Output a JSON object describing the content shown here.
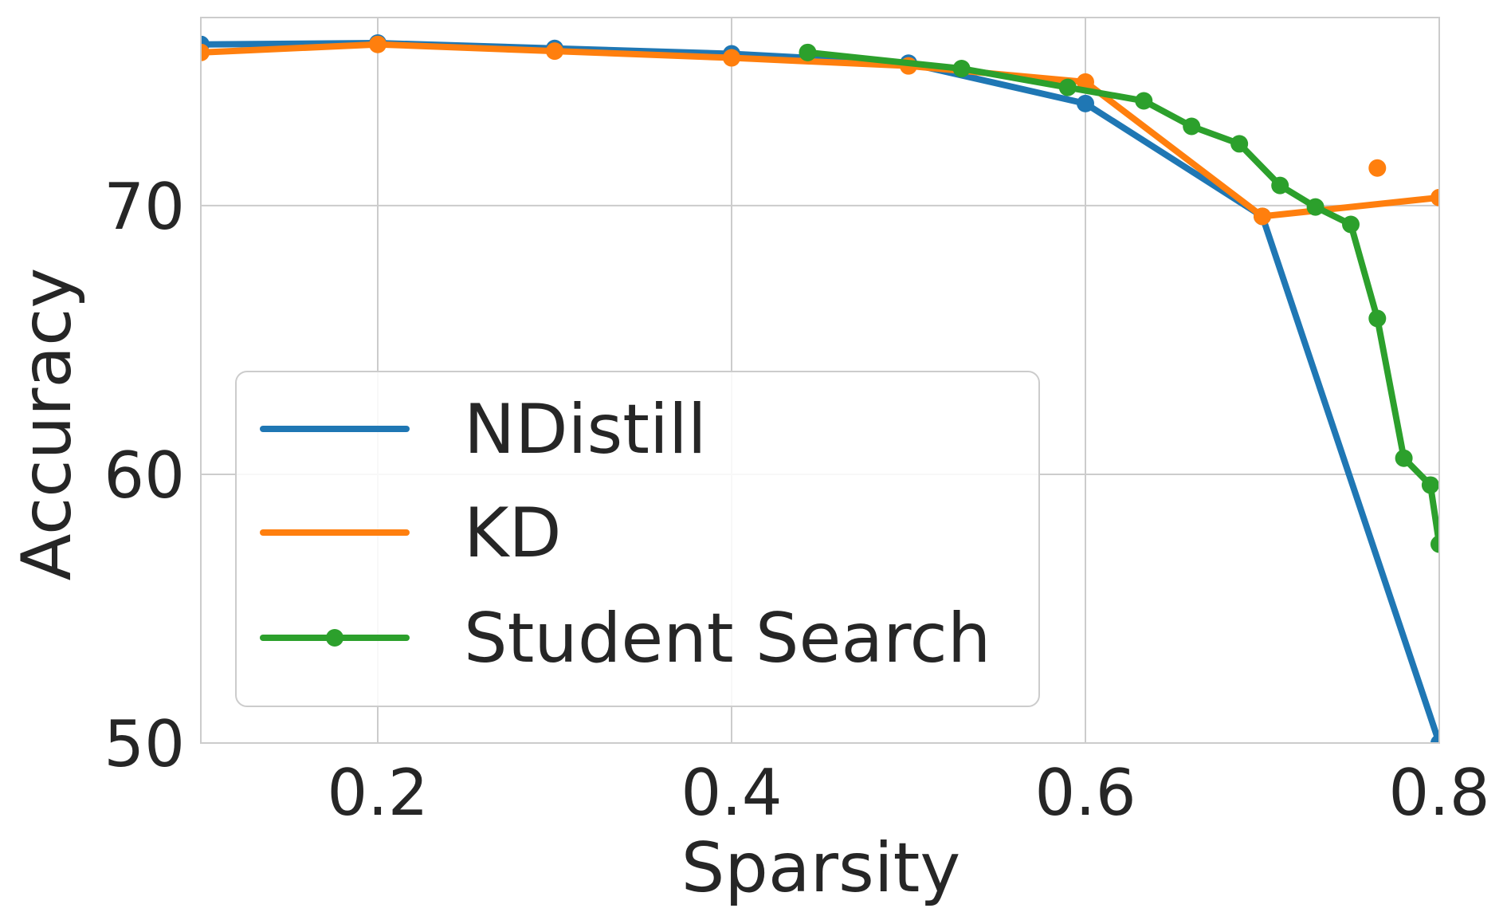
{
  "chart_data": {
    "type": "line",
    "xlabel": "Sparsity",
    "ylabel": "Accuracy",
    "xlim": [
      0.1,
      0.8
    ],
    "ylim": [
      50,
      77
    ],
    "grid": true,
    "legend_placement": "lower-left",
    "x_ticks": [
      {
        "value": 0.2,
        "label": "0.2"
      },
      {
        "value": 0.4,
        "label": "0.4"
      },
      {
        "value": 0.6,
        "label": "0.6"
      },
      {
        "value": 0.8,
        "label": "0.8"
      }
    ],
    "y_ticks": [
      {
        "value": 50,
        "label": "50"
      },
      {
        "value": 60,
        "label": "60"
      },
      {
        "value": 70,
        "label": "70"
      }
    ],
    "series": [
      {
        "name": "NDistill",
        "color": "#1f77b4",
        "markers": "only at data points, thin",
        "x": [
          0.1,
          0.2,
          0.3,
          0.4,
          0.5,
          0.6,
          0.7,
          0.8
        ],
        "y": [
          76.0,
          76.05,
          75.85,
          75.65,
          75.3,
          73.8,
          69.6,
          50.0
        ]
      },
      {
        "name": "KD",
        "color": "#ff7f0e",
        "x": [
          0.1,
          0.2,
          0.3,
          0.4,
          0.5,
          0.6,
          0.7,
          0.8
        ],
        "y": [
          75.7,
          76.0,
          75.75,
          75.5,
          75.2,
          74.6,
          69.6,
          70.3
        ]
      },
      {
        "name": "Student Search",
        "color": "#2ca02c",
        "x": [
          0.443,
          0.53,
          0.59,
          0.633,
          0.66,
          0.687,
          0.71,
          0.73,
          0.75,
          0.765,
          0.78,
          0.795,
          0.8
        ],
        "y": [
          75.7,
          75.1,
          74.4,
          73.9,
          72.95,
          72.3,
          70.75,
          69.95,
          69.3,
          65.8,
          60.6,
          59.6,
          57.4
        ]
      }
    ],
    "kd_extra_marker": {
      "x": 0.765,
      "y": 71.4
    }
  }
}
